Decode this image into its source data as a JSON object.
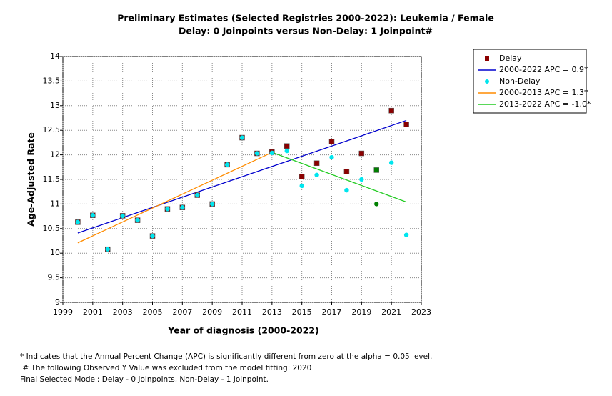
{
  "chart_data": {
    "type": "scatter-line",
    "title": "Preliminary Estimates (Selected Registries 2000-2022): Leukemia / Female",
    "subtitle": "Delay: 0 Joinpoints  versus  Non-Delay: 1 Joinpoint#",
    "x_label": "Year of diagnosis (2000-2022)",
    "y_label": "Age-Adjusted Rate",
    "xlim": [
      1999,
      2023
    ],
    "xticks": [
      1999,
      2001,
      2003,
      2005,
      2007,
      2009,
      2011,
      2013,
      2015,
      2017,
      2019,
      2021,
      2023
    ],
    "ylim": [
      9,
      14
    ],
    "yticks": [
      9,
      9.5,
      10,
      10.5,
      11,
      11.5,
      12,
      12.5,
      13,
      13.5,
      14
    ],
    "grid": true,
    "legend": "outside-right",
    "excluded_x": [
      2020
    ],
    "excluded_color": "#008000",
    "series": [
      {
        "name": "Delay",
        "kind": "points",
        "marker": "square",
        "color": "#8b0000",
        "x": [
          2000,
          2001,
          2002,
          2003,
          2004,
          2005,
          2006,
          2007,
          2008,
          2009,
          2010,
          2011,
          2012,
          2013,
          2014,
          2015,
          2016,
          2017,
          2018,
          2019,
          2020,
          2021,
          2022
        ],
        "values": [
          10.63,
          10.77,
          10.08,
          10.76,
          10.67,
          10.35,
          10.9,
          10.93,
          11.18,
          11.0,
          11.8,
          12.35,
          12.03,
          12.06,
          12.18,
          11.56,
          11.83,
          12.27,
          11.66,
          12.03,
          11.69,
          12.9,
          12.62
        ]
      },
      {
        "name": "2000-2022 APC =  0.9*",
        "kind": "line",
        "color": "#0000cd",
        "x": [
          2000,
          2022
        ],
        "values": [
          10.41,
          12.7
        ]
      },
      {
        "name": "Non-Delay",
        "kind": "points",
        "marker": "circle",
        "color": "#00e5ee",
        "x": [
          2000,
          2001,
          2002,
          2003,
          2004,
          2005,
          2006,
          2007,
          2008,
          2009,
          2010,
          2011,
          2012,
          2013,
          2014,
          2015,
          2016,
          2017,
          2018,
          2019,
          2020,
          2021,
          2022
        ],
        "values": [
          10.63,
          10.77,
          10.08,
          10.76,
          10.67,
          10.35,
          10.9,
          10.93,
          11.18,
          11.0,
          11.8,
          12.35,
          12.03,
          12.04,
          12.08,
          11.37,
          11.59,
          11.95,
          11.28,
          11.5,
          11.0,
          11.84,
          10.37
        ]
      },
      {
        "name": "2000-2013 APC =  1.3*",
        "kind": "line",
        "color": "#ff8c00",
        "x": [
          2000,
          2013
        ],
        "values": [
          10.21,
          12.05
        ]
      },
      {
        "name": "2013-2022 APC = -1.0*",
        "kind": "line",
        "color": "#22cc22",
        "x": [
          2013,
          2022
        ],
        "values": [
          12.05,
          11.04
        ]
      }
    ],
    "footnotes": [
      "* Indicates that the Annual Percent Change (APC) is significantly different from zero at the alpha = 0.05 level.",
      " # The following Observed Y Value was excluded from the model fitting: 2020",
      "Final Selected Model: Delay - 0 Joinpoints, Non-Delay - 1 Joinpoint."
    ]
  }
}
